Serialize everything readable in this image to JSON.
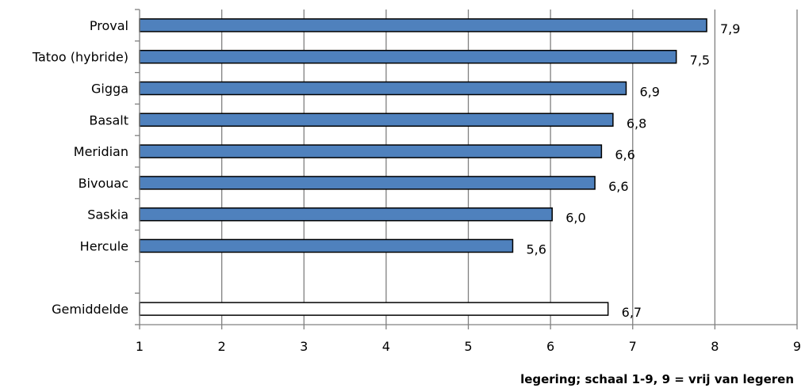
{
  "chart_data": {
    "type": "bar",
    "orientation": "horizontal",
    "categories": [
      "Proval",
      "Tatoo (hybride)",
      "Gigga",
      "Basalt",
      "Meridian",
      "Bivouac",
      "Saskia",
      "Hercule",
      "",
      "Gemiddelde"
    ],
    "values": [
      7.9,
      7.5,
      6.9,
      6.8,
      6.6,
      6.6,
      6.0,
      5.6,
      null,
      6.7
    ],
    "value_axis_values": [
      7.9,
      7.53,
      6.92,
      6.76,
      6.62,
      6.54,
      6.02,
      5.54,
      null,
      6.7
    ],
    "data_labels": [
      "7,9",
      "7,5",
      "6,9",
      "6,8",
      "6,6",
      "6,6",
      "6,0",
      "5,6",
      "",
      "6,7"
    ],
    "bar_colors": [
      "#4f81bd",
      "#4f81bd",
      "#4f81bd",
      "#4f81bd",
      "#4f81bd",
      "#4f81bd",
      "#4f81bd",
      "#4f81bd",
      "",
      "#ffffff"
    ],
    "title": "",
    "xlabel": "legering; schaal  1-9,  9 = vrij van legeren",
    "ylabel": "",
    "xlim": [
      1,
      9
    ],
    "x_ticks": [
      "1",
      "2",
      "3",
      "4",
      "5",
      "6",
      "7",
      "8",
      "9"
    ],
    "grid": "vertical",
    "legend": "none",
    "colors": {
      "bar": "#4f81bd",
      "bar_outline": "#000000",
      "gridline": "#808080",
      "average_bar": "#ffffff"
    }
  }
}
